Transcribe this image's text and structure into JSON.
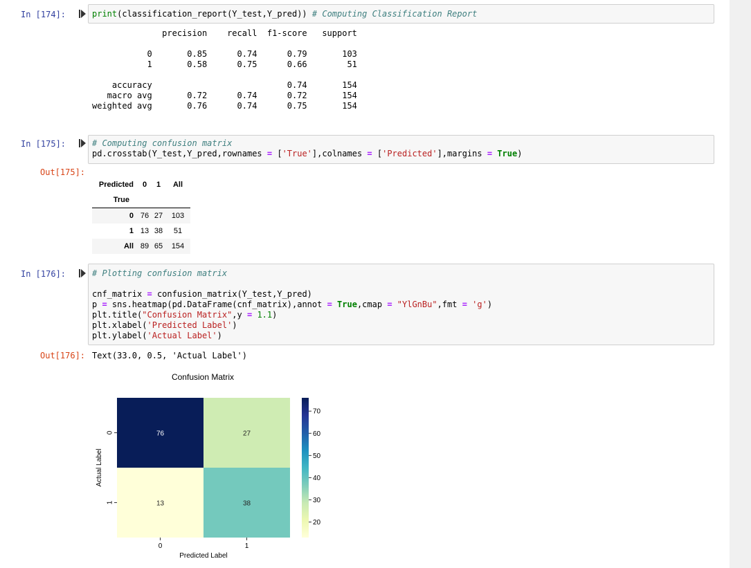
{
  "cells": [
    {
      "in_prompt": "In [174]:",
      "code": [
        {
          "t": "print",
          "c": "kw-plain"
        },
        {
          "t": "(classification_report(Y_test,Y_pred)) ",
          "c": "plain"
        },
        {
          "t": "# Computing Classification Report",
          "c": "cm"
        }
      ]
    },
    {
      "in_prompt": "In [175]:",
      "out_prompt": "Out[175]:"
    },
    {
      "in_prompt": "In [176]:",
      "out_prompt": "Out[176]:",
      "out_text": "Text(33.0, 0.5, 'Actual Label')"
    }
  ],
  "report": {
    "headers": [
      "precision",
      "recall",
      "f1-score",
      "support"
    ],
    "rows": [
      {
        "label": "0",
        "precision": "0.85",
        "recall": "0.74",
        "f1": "0.79",
        "support": "103"
      },
      {
        "label": "1",
        "precision": "0.58",
        "recall": "0.75",
        "f1": "0.66",
        "support": "51"
      },
      {
        "label": "accuracy",
        "precision": "",
        "recall": "",
        "f1": "0.74",
        "support": "154"
      },
      {
        "label": "macro avg",
        "precision": "0.72",
        "recall": "0.74",
        "f1": "0.72",
        "support": "154"
      },
      {
        "label": "weighted avg",
        "precision": "0.76",
        "recall": "0.74",
        "f1": "0.75",
        "support": "154"
      }
    ]
  },
  "crosstab": {
    "col_axis": "Predicted",
    "row_axis": "True",
    "columns": [
      "0",
      "1",
      "All"
    ],
    "rows": [
      {
        "label": "0",
        "values": [
          "76",
          "27",
          "103"
        ]
      },
      {
        "label": "1",
        "values": [
          "13",
          "38",
          "51"
        ]
      },
      {
        "label": "All",
        "values": [
          "89",
          "65",
          "154"
        ]
      }
    ]
  },
  "chart_data": {
    "type": "heatmap",
    "title": "Confusion Matrix",
    "xlabel": "Predicted Label",
    "ylabel": "Actual Label",
    "x_categories": [
      "0",
      "1"
    ],
    "y_categories": [
      "0",
      "1"
    ],
    "values": [
      [
        76,
        27
      ],
      [
        13,
        38
      ]
    ],
    "colormap": "YlGnBu",
    "colorbar_ticks": [
      20,
      30,
      40,
      50,
      60,
      70
    ],
    "colorbar_range": [
      13,
      76
    ]
  }
}
